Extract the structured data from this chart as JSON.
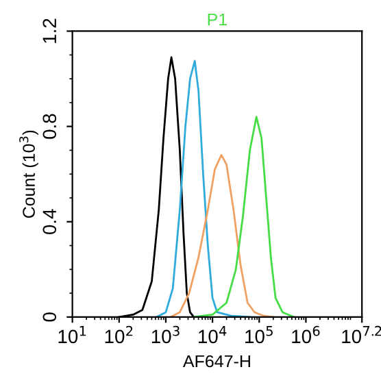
{
  "chart_data": {
    "type": "line",
    "title": "P1",
    "xlabel": "AF647-H",
    "ylabel": "Count (10$^{3}$)",
    "log": "x",
    "xlim": [
      10,
      15848932
    ],
    "xticks": [
      {
        "value": 10,
        "label": "10$^{1}$"
      },
      {
        "value": 100,
        "label": "10$^{2}$"
      },
      {
        "value": 1000,
        "label": "10$^{3}$"
      },
      {
        "value": 10000,
        "label": "10$^{4}$"
      },
      {
        "value": 100000,
        "label": "10$^{5}$"
      },
      {
        "value": 1000000,
        "label": "10$^{6}$"
      },
      {
        "value": 15848932,
        "label": "10$^{7.2}$"
      }
    ],
    "ylim": [
      0,
      1.2
    ],
    "yticks": [
      0,
      0.4,
      0.8,
      1.2
    ],
    "grid": false,
    "legend": false,
    "marker": "none",
    "line_style": "solid",
    "series": [
      {
        "color": "#000000",
        "x": [
          100,
          200,
          316,
          501,
          708,
          891,
          1122,
          1318,
          1585,
          1995,
          2399,
          2818,
          3311,
          3981
        ],
        "values": [
          0,
          0.01,
          0.03,
          0.15,
          0.45,
          0.75,
          1.0,
          1.09,
          1.0,
          0.7,
          0.35,
          0.1,
          0.02,
          0
        ]
      },
      {
        "color": "#2eaadc",
        "x": [
          631,
          1000,
          1413,
          1995,
          2630,
          3311,
          4169,
          5012,
          6310,
          7943,
          10000,
          12589,
          25119,
          63096
        ],
        "values": [
          0,
          0.02,
          0.12,
          0.45,
          0.8,
          1.0,
          1.075,
          0.95,
          0.6,
          0.3,
          0.08,
          0.02,
          0.005,
          0
        ]
      },
      {
        "color": "#f0a060",
        "x": [
          1259,
          1995,
          3162,
          5012,
          7943,
          11220,
          15488,
          19953,
          28184,
          39811,
          56234,
          79433,
          125893,
          199526
        ],
        "values": [
          0,
          0.02,
          0.1,
          0.25,
          0.45,
          0.62,
          0.68,
          0.64,
          0.45,
          0.22,
          0.06,
          0.02,
          0.005,
          0
        ]
      },
      {
        "color": "#44dd44",
        "x": [
          3981,
          10000,
          19953,
          31623,
          44668,
          63096,
          87096,
          112202,
          141254,
          177828,
          223872,
          316228,
          562341
        ],
        "values": [
          0,
          0.01,
          0.06,
          0.2,
          0.42,
          0.7,
          0.84,
          0.75,
          0.5,
          0.25,
          0.08,
          0.02,
          0
        ]
      }
    ]
  }
}
